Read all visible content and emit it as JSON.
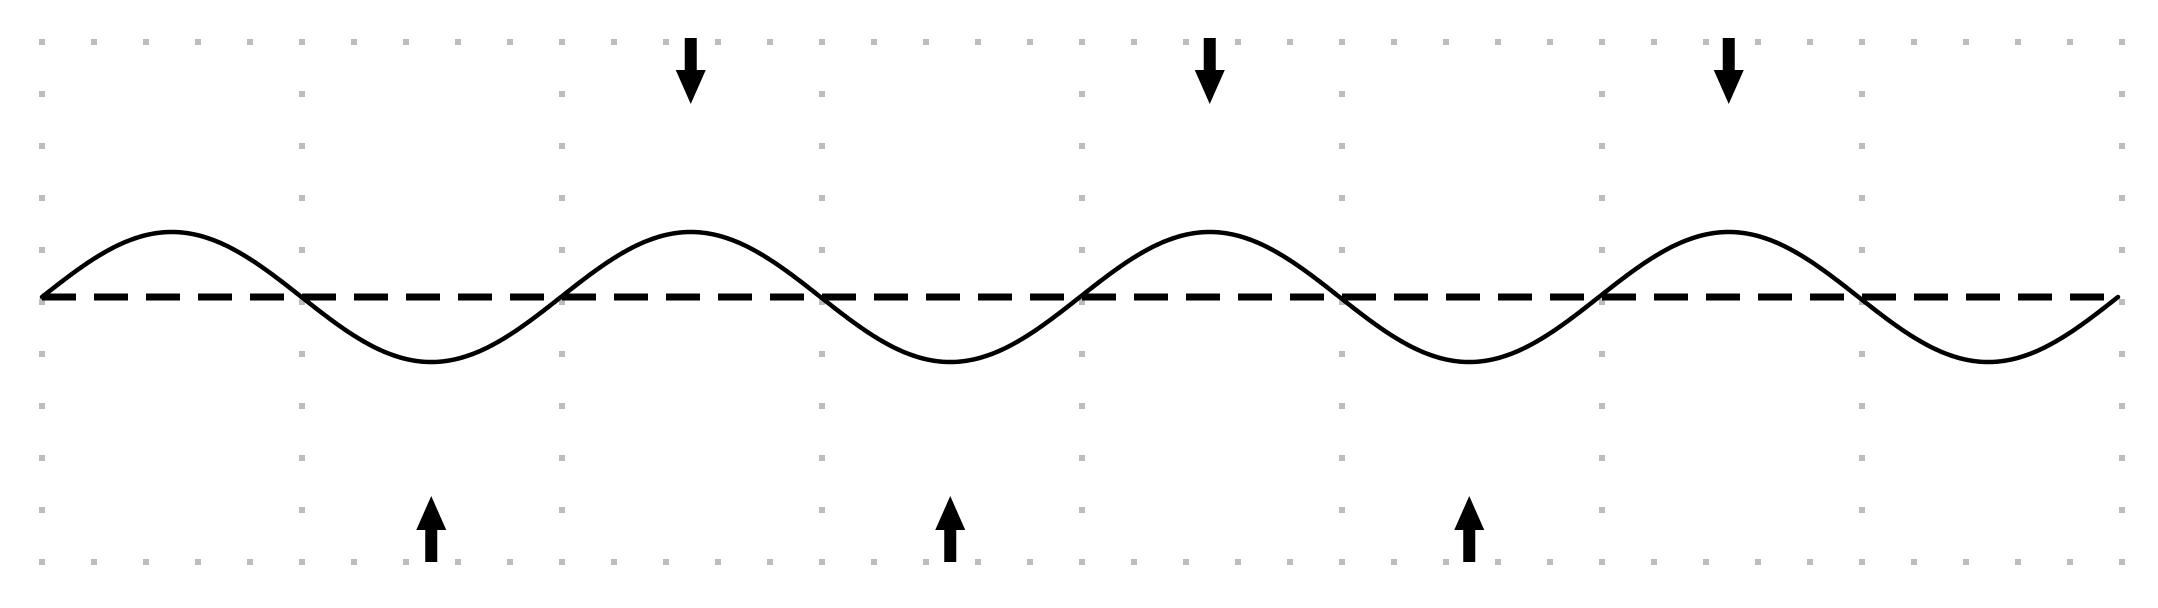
{
  "diagram": {
    "kind": "standing-wave-schematic",
    "waves_shown": 4,
    "nodes_count": 9,
    "antinodes_count": 8,
    "arrows_down_count": 3,
    "arrows_up_count": 3,
    "wave_color": "#000000",
    "axis_color": "#000000",
    "grid_dot_color": "#bdbdbd",
    "background_color": "#ffffff"
  }
}
